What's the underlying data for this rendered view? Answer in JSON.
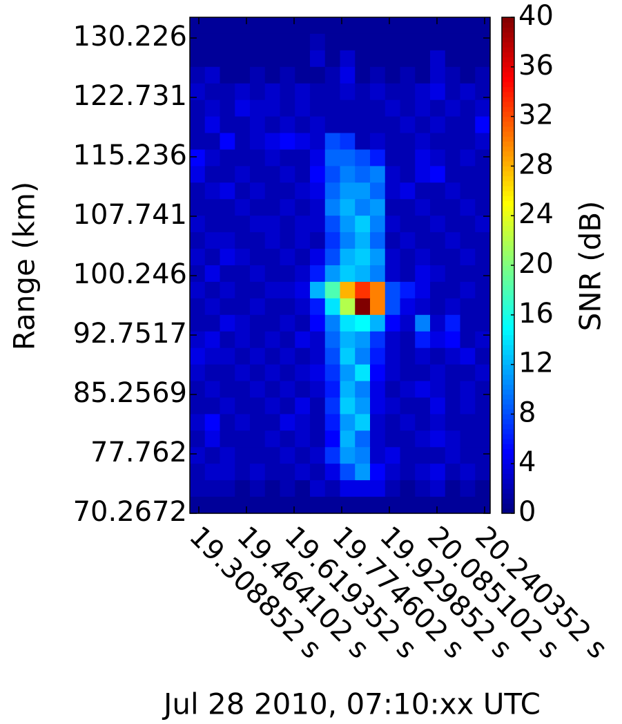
{
  "chart_data": {
    "type": "heatmap",
    "x_label": "Jul 28 2010, 07:10:xx UTC",
    "y_label": "Range (km)",
    "colorbar_label": "SNR (dB)",
    "colormap": "jet",
    "xlim": [
      19.2796,
      20.2584
    ],
    "ylim": [
      70.2672,
      132.84
    ],
    "xticks": [
      {
        "value": 19.308852,
        "label": "19.308852 s"
      },
      {
        "value": 19.464102,
        "label": "19.464102 s"
      },
      {
        "value": 19.619352,
        "label": "19.619352 s"
      },
      {
        "value": 19.774602,
        "label": "19.774602 s"
      },
      {
        "value": 19.929852,
        "label": "19.929852 s"
      },
      {
        "value": 20.085102,
        "label": "20.085102 s"
      },
      {
        "value": 20.240352,
        "label": "20.240352 s"
      }
    ],
    "yticks": [
      70.2672,
      77.762,
      85.2569,
      92.7517,
      100.246,
      107.741,
      115.236,
      122.731,
      130.226
    ],
    "clim": [
      0,
      40
    ],
    "cticks": [
      0,
      4,
      8,
      12,
      16,
      20,
      24,
      28,
      32,
      36,
      40
    ],
    "values": [
      [
        1,
        1,
        1,
        1,
        1,
        1,
        1,
        1,
        1,
        1,
        1,
        1,
        1,
        1,
        1,
        1,
        1,
        1,
        1,
        1
      ],
      [
        1,
        1,
        1,
        1,
        1,
        1,
        1,
        1,
        2,
        1,
        1,
        1,
        1,
        1,
        1,
        1,
        1,
        1,
        1,
        1
      ],
      [
        1,
        1,
        1,
        1,
        1,
        1,
        1,
        1,
        3,
        1,
        3,
        1,
        1,
        1,
        1,
        1,
        3,
        1,
        1,
        1
      ],
      [
        2,
        3,
        1,
        1,
        2,
        1,
        2,
        1,
        1,
        2,
        4,
        1,
        2,
        1,
        2,
        1,
        3,
        2,
        1,
        2
      ],
      [
        3,
        2,
        2,
        3,
        2,
        3,
        2,
        3,
        2,
        2,
        3,
        2,
        3,
        2,
        2,
        3,
        4,
        2,
        3,
        2
      ],
      [
        2,
        3,
        2,
        4,
        3,
        3,
        2,
        3,
        2,
        2,
        2,
        2,
        2,
        3,
        2,
        3,
        2,
        3,
        2,
        3
      ],
      [
        2,
        4,
        2,
        2,
        3,
        2,
        3,
        2,
        3,
        2,
        2,
        2,
        2,
        2,
        3,
        2,
        3,
        2,
        2,
        5
      ],
      [
        2,
        2,
        5,
        2,
        3,
        4,
        5,
        4,
        3,
        8,
        7,
        2,
        3,
        2,
        2,
        3,
        2,
        2,
        2,
        3
      ],
      [
        5,
        3,
        2,
        2,
        2,
        3,
        2,
        2,
        4,
        9,
        9,
        8,
        6,
        2,
        2,
        4,
        3,
        2,
        3,
        2
      ],
      [
        4,
        2,
        2,
        3,
        2,
        2,
        3,
        2,
        5,
        8,
        10,
        9,
        10,
        3,
        2,
        4,
        5,
        2,
        2,
        2
      ],
      [
        2,
        3,
        4,
        2,
        3,
        2,
        2,
        3,
        4,
        9,
        11,
        11,
        9,
        3,
        4,
        2,
        2,
        3,
        2,
        2
      ],
      [
        2,
        2,
        2,
        3,
        2,
        2,
        3,
        2,
        3,
        10,
        12,
        10,
        11,
        2,
        2,
        3,
        2,
        2,
        3,
        2
      ],
      [
        3,
        2,
        2,
        2,
        3,
        3,
        2,
        3,
        3,
        8,
        11,
        13,
        10,
        3,
        2,
        2,
        3,
        2,
        2,
        3
      ],
      [
        2,
        3,
        3,
        2,
        2,
        3,
        2,
        3,
        2,
        7,
        10,
        12,
        9,
        2,
        3,
        2,
        2,
        3,
        2,
        2
      ],
      [
        3,
        2,
        4,
        3,
        2,
        2,
        3,
        2,
        4,
        8,
        12,
        13,
        11,
        3,
        2,
        3,
        2,
        2,
        3,
        2
      ],
      [
        2,
        4,
        2,
        2,
        3,
        2,
        2,
        3,
        6,
        11,
        13,
        12,
        10,
        3,
        2,
        4,
        3,
        2,
        2,
        2
      ],
      [
        3,
        2,
        3,
        2,
        2,
        3,
        3,
        4,
        12,
        18,
        28,
        33,
        30,
        8,
        6,
        4,
        2,
        2,
        3,
        2
      ],
      [
        2,
        3,
        2,
        2,
        3,
        2,
        2,
        3,
        6,
        14,
        22,
        40,
        30,
        8,
        4,
        3,
        2,
        3,
        2,
        2
      ],
      [
        2,
        2,
        4,
        3,
        2,
        2,
        3,
        2,
        5,
        10,
        14,
        15,
        12,
        5,
        3,
        10,
        3,
        6,
        2,
        2
      ],
      [
        3,
        4,
        2,
        3,
        2,
        3,
        2,
        4,
        3,
        9,
        12,
        11,
        7,
        3,
        2,
        6,
        4,
        5,
        2,
        3
      ],
      [
        4,
        3,
        3,
        2,
        3,
        2,
        3,
        2,
        3,
        8,
        13,
        10,
        6,
        3,
        2,
        3,
        2,
        3,
        4,
        2
      ],
      [
        3,
        2,
        2,
        3,
        2,
        3,
        2,
        3,
        4,
        7,
        11,
        14,
        5,
        3,
        2,
        2,
        3,
        2,
        2,
        3
      ],
      [
        2,
        3,
        2,
        2,
        3,
        2,
        3,
        2,
        3,
        6,
        12,
        10,
        4,
        2,
        3,
        4,
        3,
        2,
        3,
        2
      ],
      [
        2,
        2,
        3,
        2,
        2,
        3,
        2,
        4,
        2,
        7,
        13,
        11,
        4,
        3,
        2,
        2,
        4,
        2,
        3,
        2
      ],
      [
        3,
        5,
        2,
        3,
        2,
        2,
        4,
        3,
        2,
        6,
        11,
        13,
        3,
        2,
        3,
        2,
        3,
        2,
        2,
        2
      ],
      [
        2,
        4,
        2,
        2,
        2,
        3,
        2,
        3,
        2,
        5,
        12,
        9,
        3,
        2,
        2,
        3,
        4,
        3,
        2,
        2
      ],
      [
        3,
        2,
        3,
        2,
        2,
        2,
        3,
        2,
        3,
        7,
        11,
        10,
        3,
        4,
        2,
        2,
        2,
        3,
        2,
        2
      ],
      [
        2,
        3,
        3,
        2,
        3,
        2,
        2,
        3,
        2,
        4,
        8,
        11,
        5,
        3,
        2,
        3,
        4,
        2,
        3,
        2
      ],
      [
        2,
        2,
        2,
        1,
        2,
        1,
        2,
        1,
        3,
        2,
        4,
        4,
        4,
        2,
        1,
        2,
        3,
        1,
        2,
        1
      ],
      [
        1,
        1,
        1,
        1,
        1,
        1,
        1,
        1,
        1,
        1,
        1,
        1,
        1,
        1,
        1,
        1,
        1,
        1,
        1,
        1
      ]
    ]
  }
}
